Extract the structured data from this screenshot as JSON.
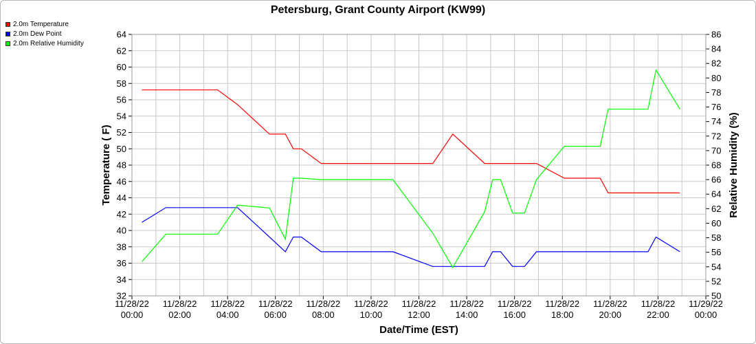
{
  "chart_data": {
    "type": "line",
    "title": "Petersburg, Grant County Airport (KW99)",
    "xlabel": "Date/Time (EST)",
    "ylabel": "Temperature ( F)",
    "y2label": "Relative Humidity (%)",
    "x_range": [
      "11/28/22 00:00",
      "11/29/22 00:00"
    ],
    "ylim": [
      32,
      64
    ],
    "y2lim": [
      50,
      86
    ],
    "y_ticks": [
      32,
      34,
      36,
      38,
      40,
      42,
      44,
      46,
      48,
      50,
      52,
      54,
      56,
      58,
      60,
      62,
      64
    ],
    "y2_ticks": [
      50,
      52,
      54,
      56,
      58,
      60,
      62,
      64,
      66,
      68,
      70,
      72,
      74,
      76,
      78,
      80,
      82,
      84,
      86
    ],
    "x_ticks": [
      {
        "line1": "11/28/22",
        "line2": "00:00"
      },
      {
        "line1": "11/28/22",
        "line2": "02:00"
      },
      {
        "line1": "11/28/22",
        "line2": "04:00"
      },
      {
        "line1": "11/28/22",
        "line2": "06:00"
      },
      {
        "line1": "11/28/22",
        "line2": "08:00"
      },
      {
        "line1": "11/28/22",
        "line2": "10:00"
      },
      {
        "line1": "11/28/22",
        "line2": "12:00"
      },
      {
        "line1": "11/28/22",
        "line2": "14:00"
      },
      {
        "line1": "11/28/22",
        "line2": "16:00"
      },
      {
        "line1": "11/28/22",
        "line2": "18:00"
      },
      {
        "line1": "11/28/22",
        "line2": "20:00"
      },
      {
        "line1": "11/28/22",
        "line2": "22:00"
      },
      {
        "line1": "11/29/22",
        "line2": "00:00"
      }
    ],
    "grid": true,
    "legend_position": "top-left outside",
    "series": [
      {
        "name": "2.0m Temperature",
        "color": "#ff0000",
        "axis": "left",
        "x": [
          "11/28/22 00:25",
          "11/28/22 01:25",
          "11/28/22 03:35",
          "11/28/22 04:25",
          "11/28/22 05:45",
          "11/28/22 06:25",
          "11/28/22 06:45",
          "11/28/22 07:05",
          "11/28/22 07:55",
          "11/28/22 08:55",
          "11/28/22 10:55",
          "11/28/22 12:35",
          "11/28/22 13:25",
          "11/28/22 14:45",
          "11/28/22 15:05",
          "11/28/22 15:25",
          "11/28/22 15:55",
          "11/28/22 16:25",
          "11/28/22 16:55",
          "11/28/22 18:05",
          "11/28/22 18:45",
          "11/28/22 19:35",
          "11/28/22 19:55",
          "11/28/22 20:55",
          "11/28/22 21:35",
          "11/28/22 21:55",
          "11/28/22 22:55"
        ],
        "y": [
          57.2,
          57.2,
          57.2,
          55.4,
          51.8,
          51.8,
          50.0,
          50.0,
          48.2,
          48.2,
          48.2,
          48.2,
          51.8,
          48.2,
          48.2,
          48.2,
          48.2,
          48.2,
          48.2,
          46.4,
          46.4,
          46.4,
          44.6,
          44.6,
          44.6,
          44.6,
          44.6
        ]
      },
      {
        "name": "2.0m Dew Point",
        "color": "#0000ff",
        "axis": "left",
        "x": [
          "11/28/22 00:25",
          "11/28/22 01:25",
          "11/28/22 03:35",
          "11/28/22 04:25",
          "11/28/22 05:45",
          "11/28/22 06:25",
          "11/28/22 06:45",
          "11/28/22 07:05",
          "11/28/22 07:55",
          "11/28/22 08:55",
          "11/28/22 10:55",
          "11/28/22 12:35",
          "11/28/22 13:25",
          "11/28/22 14:45",
          "11/28/22 15:05",
          "11/28/22 15:25",
          "11/28/22 15:55",
          "11/28/22 16:25",
          "11/28/22 16:55",
          "11/28/22 18:05",
          "11/28/22 18:45",
          "11/28/22 19:35",
          "11/28/22 19:55",
          "11/28/22 20:55",
          "11/28/22 21:35",
          "11/28/22 21:55",
          "11/28/22 22:55"
        ],
        "y": [
          41.0,
          42.8,
          42.8,
          42.8,
          39.2,
          37.4,
          39.2,
          39.2,
          37.4,
          37.4,
          37.4,
          35.6,
          35.6,
          35.6,
          37.4,
          37.4,
          35.6,
          35.6,
          37.4,
          37.4,
          37.4,
          37.4,
          37.4,
          37.4,
          37.4,
          39.2,
          37.4
        ]
      },
      {
        "name": "2.0m Relative Humidity",
        "color": "#00ff00",
        "axis": "right",
        "x": [
          "11/28/22 00:25",
          "11/28/22 01:25",
          "11/28/22 03:35",
          "11/28/22 04:25",
          "11/28/22 05:45",
          "11/28/22 06:25",
          "11/28/22 06:45",
          "11/28/22 07:05",
          "11/28/22 07:55",
          "11/28/22 08:55",
          "11/28/22 10:55",
          "11/28/22 12:35",
          "11/28/22 13:25",
          "11/28/22 14:45",
          "11/28/22 15:05",
          "11/28/22 15:25",
          "11/28/22 15:55",
          "11/28/22 16:25",
          "11/28/22 16:55",
          "11/28/22 18:05",
          "11/28/22 18:45",
          "11/28/22 19:35",
          "11/28/22 19:55",
          "11/28/22 20:55",
          "11/28/22 21:35",
          "11/28/22 21:55",
          "11/28/22 22:55"
        ],
        "y": [
          54.7,
          58.5,
          58.5,
          62.5,
          62.1,
          57.8,
          66.2,
          66.2,
          66.0,
          66.0,
          66.0,
          58.6,
          53.9,
          61.6,
          66.0,
          66.0,
          61.4,
          61.4,
          66.0,
          70.6,
          70.6,
          70.6,
          75.7,
          75.7,
          75.7,
          81.1,
          75.7
        ]
      }
    ]
  }
}
